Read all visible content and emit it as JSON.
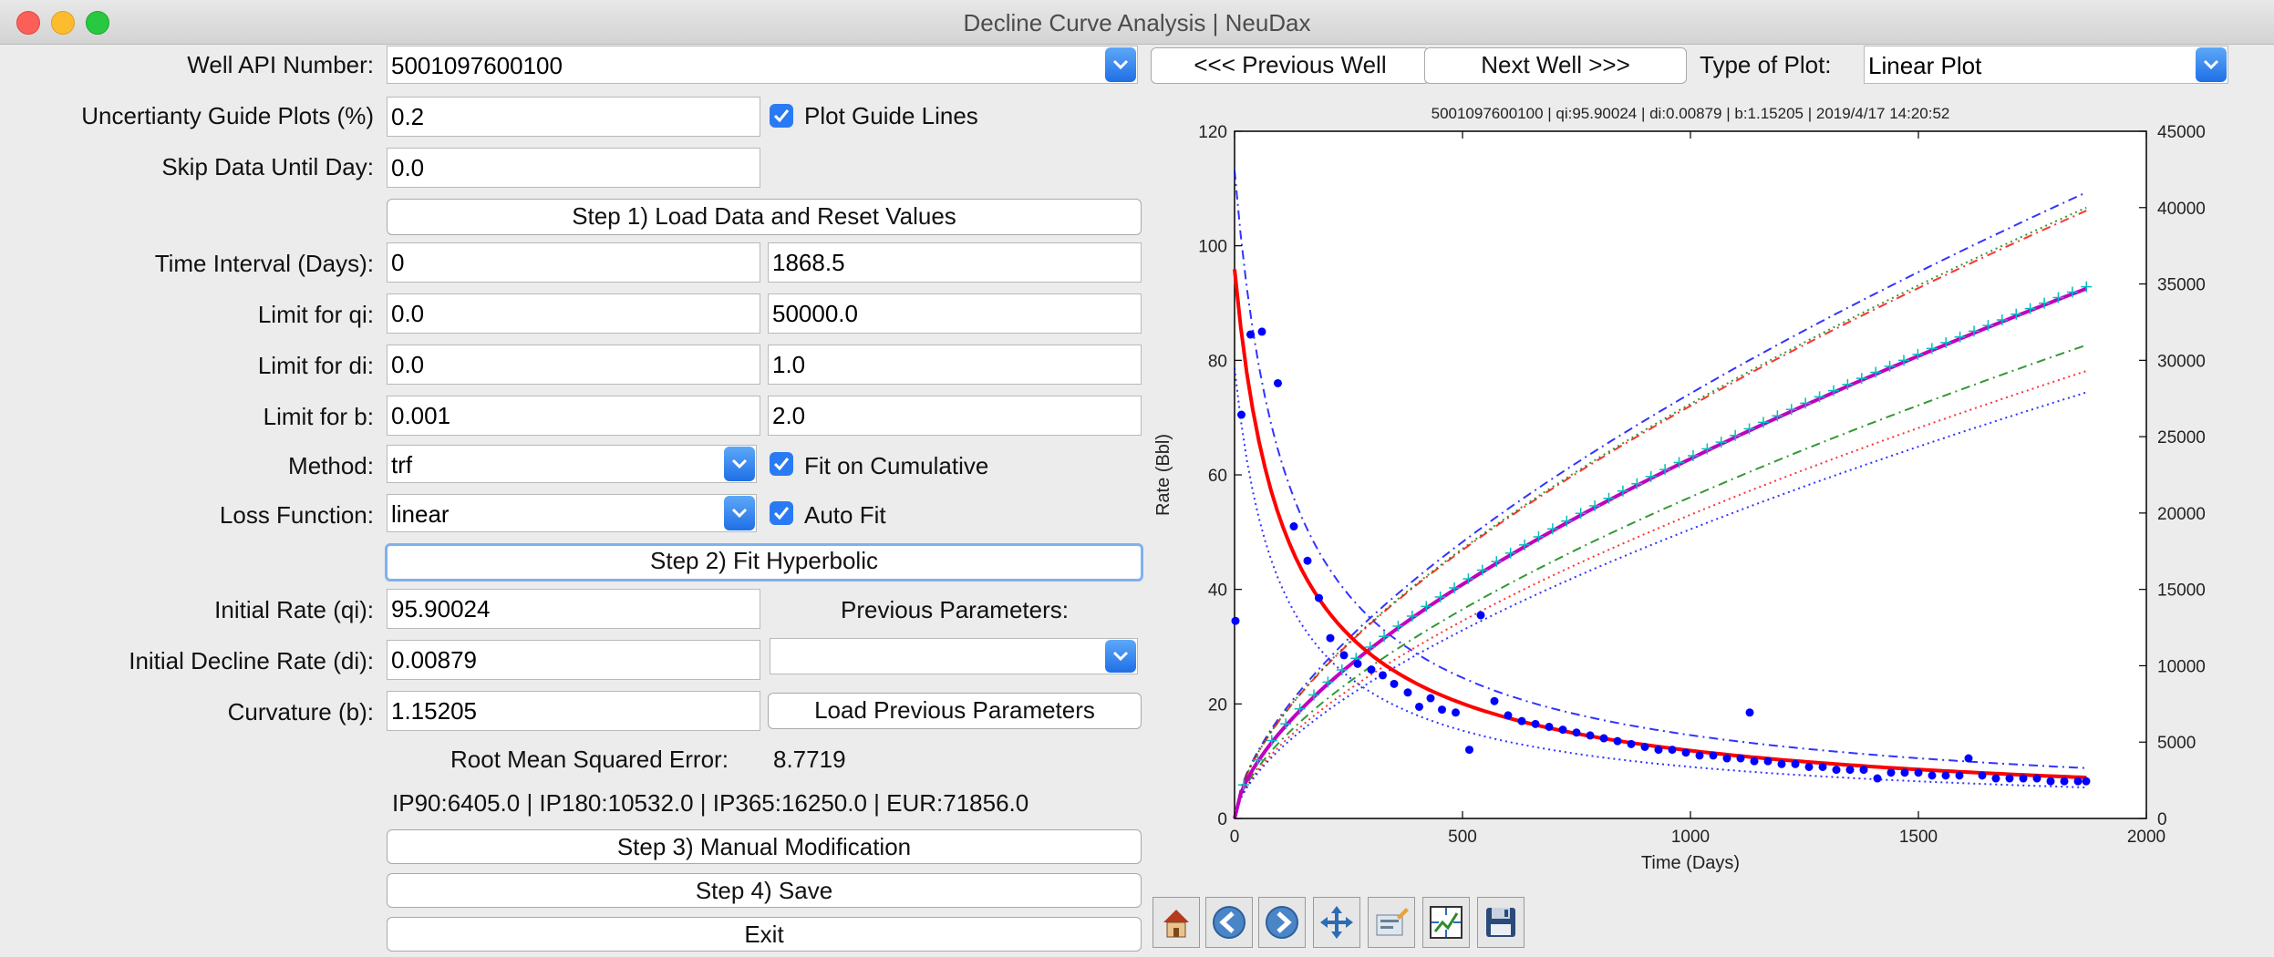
{
  "window": {
    "title": "Decline Curve Analysis | NeuDax"
  },
  "form": {
    "well_api_label": "Well API Number:",
    "well_api_value": "5001097600100",
    "prev_well_button": "<<< Previous Well",
    "next_well_button": "Next Well >>>",
    "plot_type_label": "Type of Plot:",
    "plot_type_value": "Linear Plot",
    "uncertainty_label": "Uncertianty Guide Plots (%)",
    "uncertainty_value": "0.2",
    "plot_guide_lines_label": "Plot Guide Lines",
    "skip_label": "Skip Data Until Day:",
    "skip_value": "0.0",
    "step1_button": "Step 1) Load Data and Reset Values",
    "time_interval_label": "Time Interval (Days):",
    "time_interval_min": "0",
    "time_interval_max": "1868.5",
    "limit_qi_label": "Limit for qi:",
    "limit_qi_min": "0.0",
    "limit_qi_max": "50000.0",
    "limit_di_label": "Limit for di:",
    "limit_di_min": "0.0",
    "limit_di_max": "1.0",
    "limit_b_label": "Limit for b:",
    "limit_b_min": "0.001",
    "limit_b_max": "2.0",
    "method_label": "Method:",
    "method_value": "trf",
    "fit_cumulative_label": "Fit on Cumulative",
    "loss_label": "Loss Function:",
    "loss_value": "linear",
    "auto_fit_label": "Auto Fit",
    "step2_button": "Step 2) Fit Hyperbolic",
    "qi_label": "Initial Rate (qi):",
    "qi_value": "95.90024",
    "prev_params_label": "Previous Parameters:",
    "di_label": "Initial Decline Rate (di):",
    "di_value": "0.00879",
    "prev_params_value": "",
    "b_label": "Curvature (b):",
    "b_value": "1.15205",
    "load_prev_button": "Load Previous Parameters",
    "rmse_label": "Root Mean Squared Error:",
    "rmse_value": "8.7719",
    "summary": "IP90:6405.0 | IP180:10532.0 | IP365:16250.0 | EUR:71856.0",
    "step3_button": "Step 3) Manual Modification",
    "step4_button": "Step 4) Save",
    "exit_button": "Exit"
  },
  "toolbar": {
    "icons": [
      "home-icon",
      "back-icon",
      "forward-icon",
      "pan-icon",
      "configure-icon",
      "zoom-icon",
      "save-icon"
    ]
  },
  "chart_data": {
    "type": "line",
    "title": "5001097600100 | qi:95.90024 | di:0.00879 | b:1.15205 | 2019/4/17 14:20:52",
    "xlabel": "Time (Days)",
    "ylabel": "Rate (Bbl)",
    "xlim": [
      0,
      2000
    ],
    "ylim": [
      0,
      120
    ],
    "y2lim": [
      0,
      45000
    ],
    "xticks": [
      "0",
      "500",
      "1000",
      "1500",
      "2000"
    ],
    "yticks": [
      "0",
      "20",
      "40",
      "60",
      "80",
      "100",
      "120"
    ],
    "y2ticks": [
      "0",
      "5000",
      "10000",
      "15000",
      "20000",
      "25000",
      "30000",
      "35000",
      "40000",
      "45000"
    ],
    "grid": false,
    "legend": "none",
    "rate_fit": {
      "qi": 95.90024,
      "di": 0.00879,
      "b": 1.15205,
      "color": "#ff0000"
    },
    "cumulative_fit": {
      "axis": "right",
      "color": "#bf00bf",
      "endpoint": [
        1868.5,
        34700
      ]
    },
    "rate_points": {
      "color": "#0000ff",
      "x": [
        2,
        15,
        35,
        60,
        95,
        130,
        160,
        185,
        210,
        240,
        270,
        300,
        325,
        350,
        380,
        405,
        430,
        455,
        485,
        515,
        540,
        570,
        600,
        630,
        660,
        690,
        720,
        750,
        780,
        810,
        840,
        870,
        900,
        930,
        960,
        990,
        1020,
        1050,
        1080,
        1110,
        1130,
        1140,
        1170,
        1200,
        1230,
        1260,
        1290,
        1320,
        1350,
        1380,
        1410,
        1440,
        1470,
        1500,
        1530,
        1560,
        1590,
        1610,
        1640,
        1670,
        1700,
        1730,
        1760,
        1790,
        1820,
        1850,
        1868
      ],
      "y": [
        34.5,
        70.5,
        84.5,
        85,
        76,
        51,
        45,
        38.5,
        31.5,
        28.5,
        27,
        26,
        25,
        23.5,
        22,
        19.5,
        21,
        19,
        18.5,
        12,
        35.5,
        20.5,
        18,
        17,
        16.5,
        16,
        15.5,
        15,
        14.5,
        14,
        13.5,
        13,
        12.5,
        12,
        12,
        11.5,
        11,
        11,
        10.5,
        10.5,
        18.5,
        10,
        10,
        9.5,
        9.5,
        9,
        9,
        8.5,
        8.5,
        8.5,
        7,
        8,
        8,
        8,
        7.5,
        7.5,
        7.5,
        10.5,
        7.5,
        7,
        7,
        7,
        7,
        6.5,
        6.5,
        6.5,
        6.5
      ]
    },
    "cumulative_points": {
      "color": "#00bfbf",
      "axis": "right"
    },
    "guide_lines": [
      {
        "kind": "rate-upper",
        "color": "#0000ff",
        "style": "dashdot"
      },
      {
        "kind": "rate-lower",
        "color": "#0000ff",
        "style": "dotted"
      },
      {
        "kind": "cum-upper",
        "color": "#0000ff",
        "style": "dashdot",
        "end": 41000
      },
      {
        "kind": "cum-upper2",
        "color": "#ff0000",
        "style": "dashdot",
        "end": 39800
      },
      {
        "kind": "cum-upper3",
        "color": "#008000",
        "style": "dotted",
        "end": 40000
      },
      {
        "kind": "cum-lower",
        "color": "#008000",
        "style": "dashdot",
        "end": 31000
      },
      {
        "kind": "cum-lower2",
        "color": "#ff0000",
        "style": "dotted",
        "end": 29300
      },
      {
        "kind": "cum-lower3",
        "color": "#0000ff",
        "style": "dotted",
        "end": 27900
      }
    ]
  }
}
